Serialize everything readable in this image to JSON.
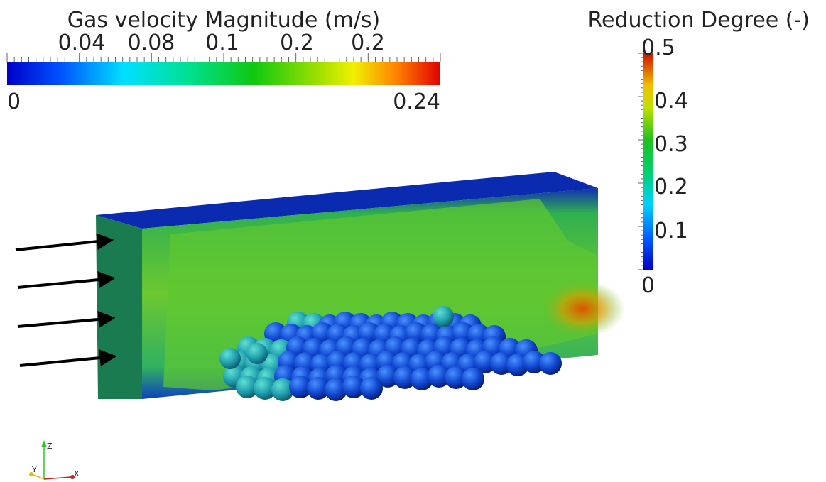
{
  "velocity_legend": {
    "title": "Gas velocity Magnitude (m/s)",
    "tick_labels": [
      "0.04",
      "0.08",
      "0.1",
      "0.2",
      "0.2"
    ],
    "min_label": "0",
    "max_label": "0.24"
  },
  "reduction_legend": {
    "title": "Reduction Degree (-)",
    "tick_labels": [
      "0.5",
      "0.4",
      "0.3",
      "0.2",
      "0.1"
    ],
    "min_label": "0"
  },
  "axes_triad": {
    "z": "Z",
    "y": "Y",
    "x": "X"
  }
}
